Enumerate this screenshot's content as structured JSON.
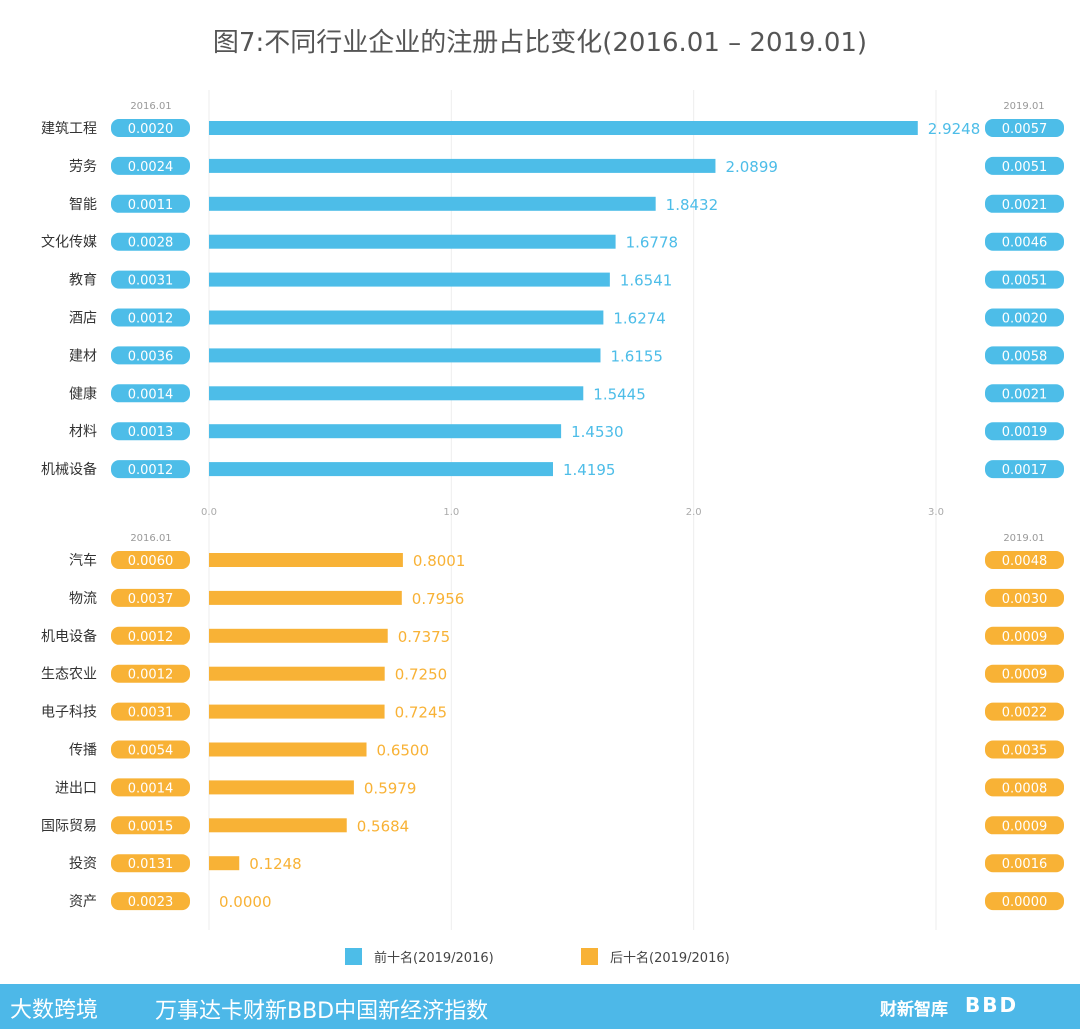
{
  "title": "图7:不同行业企业的注册占比变化(2016.01 – 2019.01)",
  "colors": {
    "top": "#4dbde8",
    "bottom": "#f8b236",
    "grid": "#eeeeee"
  },
  "chart_data": {
    "type": "bar",
    "orientation": "horizontal",
    "x_ticks": [
      "0.0",
      "1.0",
      "2.0",
      "3.0"
    ],
    "xlim": [
      0,
      3.0
    ],
    "grid": true,
    "left_column_label": "2016.01",
    "right_column_label": "2019.01",
    "panels": [
      {
        "series_name": "前十名(2019/2016)",
        "color": "#4dbde8",
        "categories": [
          "建筑工程",
          "劳务",
          "智能",
          "文化传媒",
          "教育",
          "酒店",
          "建材",
          "健康",
          "材料",
          "机械设备"
        ],
        "values": [
          2.9248,
          2.0899,
          1.8432,
          1.6778,
          1.6541,
          1.6274,
          1.6155,
          1.5445,
          1.453,
          1.4195
        ],
        "value_labels": [
          "2.9248",
          "2.0899",
          "1.8432",
          "1.6778",
          "1.6541",
          "1.6274",
          "1.6155",
          "1.5445",
          "1.4530",
          "1.4195"
        ],
        "share_2016": [
          "0.0020",
          "0.0024",
          "0.0011",
          "0.0028",
          "0.0031",
          "0.0012",
          "0.0036",
          "0.0014",
          "0.0013",
          "0.0012"
        ],
        "share_2019": [
          "0.0057",
          "0.0051",
          "0.0021",
          "0.0046",
          "0.0051",
          "0.0020",
          "0.0058",
          "0.0021",
          "0.0019",
          "0.0017"
        ]
      },
      {
        "series_name": "后十名(2019/2016)",
        "color": "#f8b236",
        "categories": [
          "汽车",
          "物流",
          "机电设备",
          "生态农业",
          "电子科技",
          "传播",
          "进出口",
          "国际贸易",
          "投资",
          "资产"
        ],
        "values": [
          0.8001,
          0.7956,
          0.7375,
          0.725,
          0.7245,
          0.65,
          0.5979,
          0.5684,
          0.1248,
          0.0
        ],
        "value_labels": [
          "0.8001",
          "0.7956",
          "0.7375",
          "0.7250",
          "0.7245",
          "0.6500",
          "0.5979",
          "0.5684",
          "0.1248",
          "0.0000"
        ],
        "share_2016": [
          "0.0060",
          "0.0037",
          "0.0012",
          "0.0012",
          "0.0031",
          "0.0054",
          "0.0014",
          "0.0015",
          "0.0131",
          "0.0023"
        ],
        "share_2019": [
          "0.0048",
          "0.0030",
          "0.0009",
          "0.0009",
          "0.0022",
          "0.0035",
          "0.0008",
          "0.0009",
          "0.0016",
          "0.0000"
        ]
      }
    ],
    "legend": {
      "position": "bottom",
      "items": [
        "前十名(2019/2016)",
        "后十名(2019/2016)"
      ]
    }
  },
  "footer": {
    "left_logo": "大数跨境",
    "center_text": "万事达卡财新BBD中国新经济指数",
    "right_brand_1": "财新智库",
    "right_brand_2": "BBD"
  }
}
